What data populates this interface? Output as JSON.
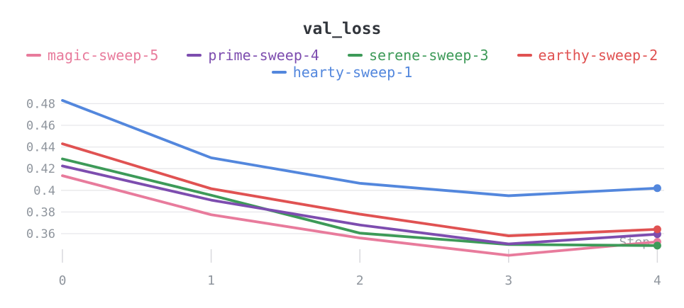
{
  "title": "val_loss",
  "chart_data": {
    "type": "line",
    "title": "val_loss",
    "xlabel": "Step",
    "ylabel": "",
    "x": [
      0,
      1,
      2,
      3,
      4
    ],
    "x_tick_labels": [
      "0",
      "1",
      "2",
      "3",
      "4"
    ],
    "y_tick_labels": [
      "0.48",
      "0.46",
      "0.44",
      "0.42",
      "0.4",
      "0.38",
      "0.36"
    ],
    "y_tick_values": [
      0.48,
      0.46,
      0.44,
      0.42,
      0.4,
      0.38,
      0.36
    ],
    "ylim": [
      0.345,
      0.491
    ],
    "grid": "horizontal",
    "legend_position": "top-center",
    "end_point_markers": true,
    "series": [
      {
        "name": "magic-sweep-5",
        "color": "#e87b9c",
        "values": [
          0.4135,
          0.3775,
          0.356,
          0.34,
          0.3525
        ]
      },
      {
        "name": "prime-sweep-4",
        "color": "#7d4daf",
        "values": [
          0.4225,
          0.391,
          0.368,
          0.3505,
          0.3595
        ]
      },
      {
        "name": "serene-sweep-3",
        "color": "#3d9a58",
        "values": [
          0.429,
          0.3955,
          0.3605,
          0.35,
          0.349
        ]
      },
      {
        "name": "earthy-sweep-2",
        "color": "#e05252",
        "values": [
          0.443,
          0.4015,
          0.378,
          0.358,
          0.364
        ]
      },
      {
        "name": "hearty-sweep-1",
        "color": "#5387dd",
        "values": [
          0.483,
          0.43,
          0.4065,
          0.395,
          0.402
        ]
      }
    ],
    "draw_order": [
      "magic-sweep-5",
      "serene-sweep-3",
      "prime-sweep-4",
      "earthy-sweep-2",
      "hearty-sweep-1"
    ]
  },
  "colors": {
    "title_text": "#32363c",
    "axis_text": "#8f959d",
    "gridline": "#e7e7ea",
    "tick_mark": "#d9d9dd",
    "step_label": "#9aa0a6",
    "background": "#ffffff"
  }
}
